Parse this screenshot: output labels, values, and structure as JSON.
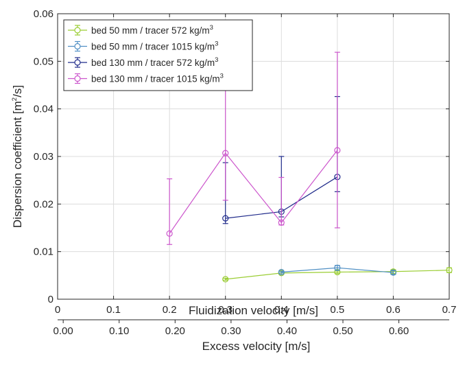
{
  "chart_data": {
    "type": "line",
    "xlabel": "Fluidization velocity [m/s]",
    "ylabel": "Dispersion coefficient [m",
    "ylabel_sup": "2",
    "ylabel_suffix": "/s]",
    "xlim": [
      0,
      0.7
    ],
    "ylim": [
      0,
      0.06
    ],
    "xticks": [
      "0",
      "0.1",
      "0.2",
      "0.3",
      "0.4",
      "0.5",
      "0.6",
      "0.7"
    ],
    "yticks": [
      "0",
      "0.01",
      "0.02",
      "0.03",
      "0.04",
      "0.05",
      "0.06"
    ],
    "grid": true,
    "legend_position": "top-left",
    "secondary_x_axis": {
      "label": "Excess velocity [m/s]",
      "ticks": [
        "0.00",
        "0.10",
        "0.20",
        "0.30",
        "0.40",
        "0.50",
        "0.60"
      ],
      "offset": 0.01
    },
    "series": [
      {
        "name": "bed 50 mm / tracer 572 kg/m",
        "name_sup": "3",
        "color": "#9acd32",
        "x": [
          0.3,
          0.4,
          0.5,
          0.6,
          0.7
        ],
        "y": [
          0.0042,
          0.0055,
          0.0057,
          0.0058,
          0.0061
        ],
        "err_low": [
          0.0002,
          0.0003,
          0.0003,
          0.0004,
          0.0005
        ],
        "err_high": [
          0.0002,
          0.0003,
          0.0003,
          0.0004,
          0.0005
        ]
      },
      {
        "name": "bed 50 mm / tracer 1015 kg/m",
        "name_sup": "3",
        "color": "#4f8fc4",
        "x": [
          0.4,
          0.5,
          0.6
        ],
        "y": [
          0.0057,
          0.0066,
          0.0056
        ],
        "err_low": [
          0.0002,
          0.0005,
          0.0004
        ],
        "err_high": [
          0.0002,
          0.0005,
          0.0004
        ]
      },
      {
        "name": "bed 130 mm / tracer 572 kg/m",
        "name_sup": "3",
        "color": "#1f2a8a",
        "x": [
          0.3,
          0.4,
          0.5
        ],
        "y": [
          0.017,
          0.0184,
          0.0257
        ],
        "err_low": [
          0.0011,
          0.0011,
          0.0031
        ],
        "err_high": [
          0.0117,
          0.0116,
          0.0169
        ]
      },
      {
        "name": "bed 130 mm / tracer 1015 kg/m",
        "name_sup": "3",
        "color": "#cc55cc",
        "x": [
          0.2,
          0.3,
          0.4,
          0.5
        ],
        "y": [
          0.0138,
          0.0307,
          0.0161,
          0.0313
        ],
        "err_low": [
          0.0023,
          0.0099,
          0.0005,
          0.0163
        ],
        "err_high": [
          0.0115,
          0.0133,
          0.0095,
          0.0206
        ]
      }
    ]
  }
}
